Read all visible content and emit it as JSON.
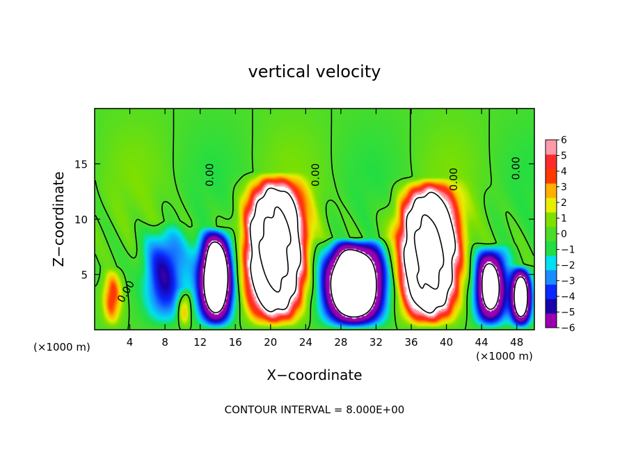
{
  "chart_data": {
    "type": "heatmap",
    "title": "vertical velocity",
    "xlabel": "X−coordinate",
    "ylabel": "Z−coordinate",
    "x_unit_left": "(×1000 m)",
    "x_unit_right": "(×1000 m)",
    "xlim": [
      0,
      50
    ],
    "ylim": [
      0,
      20
    ],
    "x_ticks": [
      4,
      8,
      12,
      16,
      20,
      24,
      28,
      32,
      36,
      40,
      44,
      48
    ],
    "y_ticks": [
      5,
      10,
      15
    ],
    "colorbar": {
      "range": [
        -6,
        6
      ],
      "tick_labels": [
        "6",
        "5",
        "4",
        "3",
        "2",
        "1",
        "0",
        "−1",
        "−2",
        "−3",
        "−4",
        "−5",
        "−6"
      ],
      "colors": [
        "#9900b0",
        "#1a00a8",
        "#0a28ff",
        "#1a8cff",
        "#00e0f0",
        "#22dd44",
        "#4ddc28",
        "#7fe000",
        "#e8ee00",
        "#ffb000",
        "#ff3a00",
        "#ff2a2a",
        "#ff9aa8"
      ]
    },
    "contour_label": "0.00",
    "footer": "CONTOUR INTERVAL = 8.000E+00",
    "updrafts": [
      {
        "x_center": 20.5,
        "x_halfwidth": 3.3,
        "top": 15.0,
        "peak": 22
      },
      {
        "x_center": 38.0,
        "x_halfwidth": 3.3,
        "top": 14.5,
        "peak": 22
      },
      {
        "x_center": 2.0,
        "x_halfwidth": 1.2,
        "top": 6.0,
        "peak": 4.5
      },
      {
        "x_center": 10.2,
        "x_halfwidth": 0.9,
        "top": 4.0,
        "peak": 4.0
      }
    ],
    "downdrafts": [
      {
        "x_center": 13.8,
        "x_halfwidth": 2.3,
        "top": 9.5,
        "peak": -14
      },
      {
        "x_center": 29.5,
        "x_halfwidth": 4.0,
        "top": 8.5,
        "peak": -16
      },
      {
        "x_center": 45.0,
        "x_halfwidth": 2.2,
        "top": 8.0,
        "peak": -11
      },
      {
        "x_center": 48.5,
        "x_halfwidth": 1.4,
        "top": 6.0,
        "peak": -12
      },
      {
        "x_center": 8.0,
        "x_halfwidth": 3.0,
        "top": 10.0,
        "peak": -5
      }
    ]
  }
}
